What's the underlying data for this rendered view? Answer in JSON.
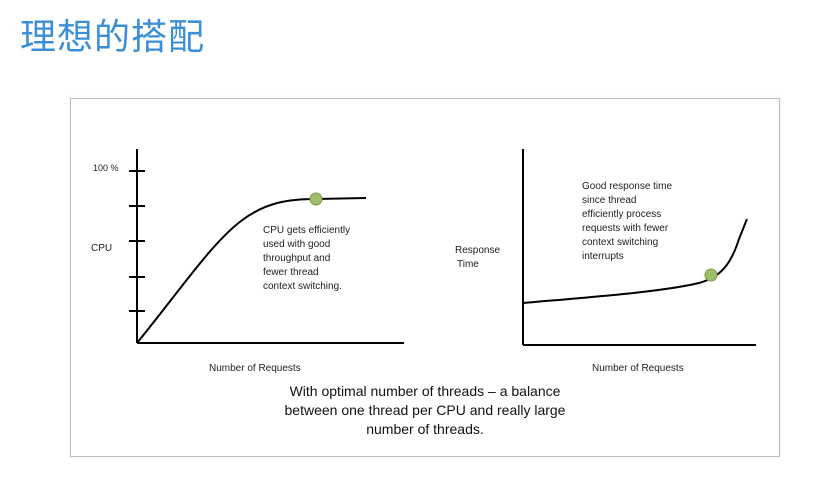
{
  "slide": {
    "title": "理想的搭配"
  },
  "left_chart": {
    "y_top_label": "100 %",
    "y_label": "CPU",
    "x_label": "Number of Requests",
    "annotation": [
      "CPU gets efficiently",
      "used with good",
      "throughput and",
      "fewer thread",
      "context switching."
    ],
    "marker_color": "#9dbf6b"
  },
  "right_chart": {
    "y_label": [
      "Response",
      "Time"
    ],
    "x_label": "Number of Requests",
    "annotation": [
      "Good response time",
      "since thread",
      "efficiently process",
      "requests with fewer",
      "context switching",
      "interrupts"
    ],
    "marker_color": "#9dbf6b"
  },
  "caption": [
    "With optimal number of threads – a balance",
    "between one thread per CPU and really large",
    "number of threads."
  ],
  "colors": {
    "title": "#3a8fd6",
    "axis": "#000000",
    "frame": "#bdbdbd"
  }
}
